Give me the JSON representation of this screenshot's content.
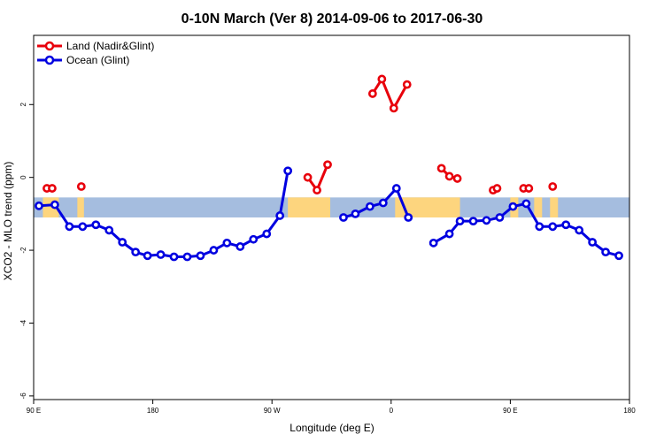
{
  "chart_data": {
    "type": "line",
    "title": "0-10N March (Ver 8)   2014-09-06 to 2017-06-30",
    "xlabel": "Longitude (deg E)",
    "ylabel": "XCO2 - MLO trend (ppm)",
    "x_tick_labels": [
      "90 E",
      "180",
      "90 W",
      "0",
      "90 E",
      "180"
    ],
    "y_tick_labels": [
      "-6",
      "-4",
      "-2",
      "0",
      "2"
    ],
    "xlim": [
      90,
      540
    ],
    "ylim": [
      -6.1,
      3.9
    ],
    "grid": false,
    "legend_position": "top-left",
    "colors": {
      "land": "#e8000b",
      "ocean": "#0000e0",
      "band_ocean": "#a5bddf",
      "band_land": "#fdd57e"
    },
    "series": [
      {
        "name": "Land (Nadir&Glint)",
        "color": "#e8000b",
        "segments": [
          [
            [
              100,
              -0.3
            ],
            [
              104,
              -0.3
            ]
          ],
          [
            [
              126,
              -0.25
            ]
          ],
          [
            [
              297,
              0.0
            ],
            [
              304,
              -0.35
            ],
            [
              312,
              0.35
            ]
          ],
          [
            [
              346,
              2.3
            ],
            [
              353,
              2.7
            ],
            [
              362,
              1.9
            ],
            [
              372,
              2.55
            ]
          ],
          [
            [
              398,
              0.25
            ],
            [
              404,
              0.03
            ],
            [
              410,
              -0.03
            ]
          ],
          [
            [
              437,
              -0.35
            ],
            [
              440,
              -0.3
            ]
          ],
          [
            [
              460,
              -0.3
            ],
            [
              464,
              -0.3
            ]
          ],
          [
            [
              482,
              -0.25
            ]
          ]
        ]
      },
      {
        "name": "Ocean (Glint)",
        "color": "#0000e0",
        "segments": [
          [
            [
              94,
              -0.78
            ],
            [
              106,
              -0.75
            ],
            [
              117,
              -1.35
            ],
            [
              127,
              -1.35
            ],
            [
              137,
              -1.3
            ],
            [
              147,
              -1.45
            ],
            [
              157,
              -1.78
            ],
            [
              167,
              -2.05
            ],
            [
              176,
              -2.15
            ],
            [
              186,
              -2.12
            ],
            [
              196,
              -2.18
            ],
            [
              206,
              -2.18
            ],
            [
              216,
              -2.15
            ],
            [
              226,
              -2.0
            ],
            [
              236,
              -1.8
            ],
            [
              246,
              -1.9
            ],
            [
              256,
              -1.7
            ],
            [
              266,
              -1.55
            ],
            [
              276,
              -1.05
            ],
            [
              282,
              0.18
            ]
          ],
          [
            [
              324,
              -1.1
            ],
            [
              333,
              -1.0
            ],
            [
              344,
              -0.8
            ],
            [
              354,
              -0.7
            ],
            [
              364,
              -0.3
            ],
            [
              373,
              -1.1
            ]
          ],
          [
            [
              392,
              -1.8
            ],
            [
              404,
              -1.55
            ],
            [
              412,
              -1.2
            ],
            [
              422,
              -1.2
            ],
            [
              432,
              -1.18
            ],
            [
              442,
              -1.1
            ],
            [
              452,
              -0.8
            ],
            [
              462,
              -0.72
            ],
            [
              472,
              -1.35
            ],
            [
              482,
              -1.35
            ],
            [
              492,
              -1.3
            ],
            [
              502,
              -1.45
            ],
            [
              512,
              -1.78
            ],
            [
              522,
              -2.05
            ],
            [
              532,
              -2.15
            ]
          ]
        ]
      }
    ],
    "background_band": {
      "y_range": [
        -1.1,
        -0.55
      ],
      "land_x_ranges": [
        [
          97,
          109
        ],
        [
          123,
          128
        ],
        [
          282,
          314
        ],
        [
          363,
          412
        ],
        [
          450,
          456
        ],
        [
          468,
          474
        ],
        [
          480,
          486
        ]
      ]
    }
  }
}
